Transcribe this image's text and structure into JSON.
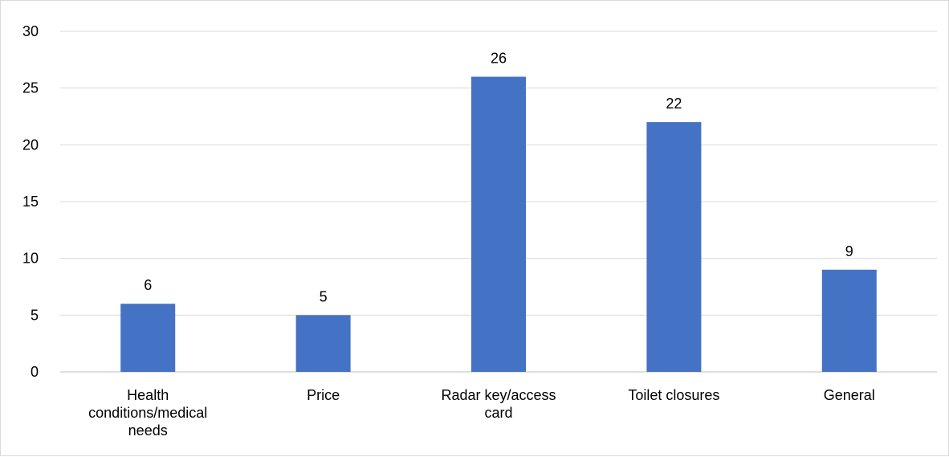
{
  "chart_data": {
    "type": "bar",
    "categories": [
      "Health conditions/medical needs",
      "Price",
      "Radar key/access card",
      "Toilet closures",
      "General"
    ],
    "category_lines": [
      [
        "Health",
        "conditions/medical",
        "needs"
      ],
      [
        "Price"
      ],
      [
        "Radar key/access",
        "card"
      ],
      [
        "Toilet closures"
      ],
      [
        "General"
      ]
    ],
    "values": [
      6,
      5,
      26,
      22,
      9
    ],
    "data_labels": [
      "6",
      "5",
      "26",
      "22",
      "9"
    ],
    "y_ticks": [
      "0",
      "5",
      "10",
      "15",
      "20",
      "25",
      "30"
    ],
    "ylim": [
      0,
      30
    ],
    "grid": true,
    "legend": "none",
    "title": "",
    "xlabel": "",
    "ylabel": "",
    "colors": {
      "bar": "#4472C4",
      "grid": "#d9d9d9",
      "axis": "#bfbfbf"
    }
  }
}
